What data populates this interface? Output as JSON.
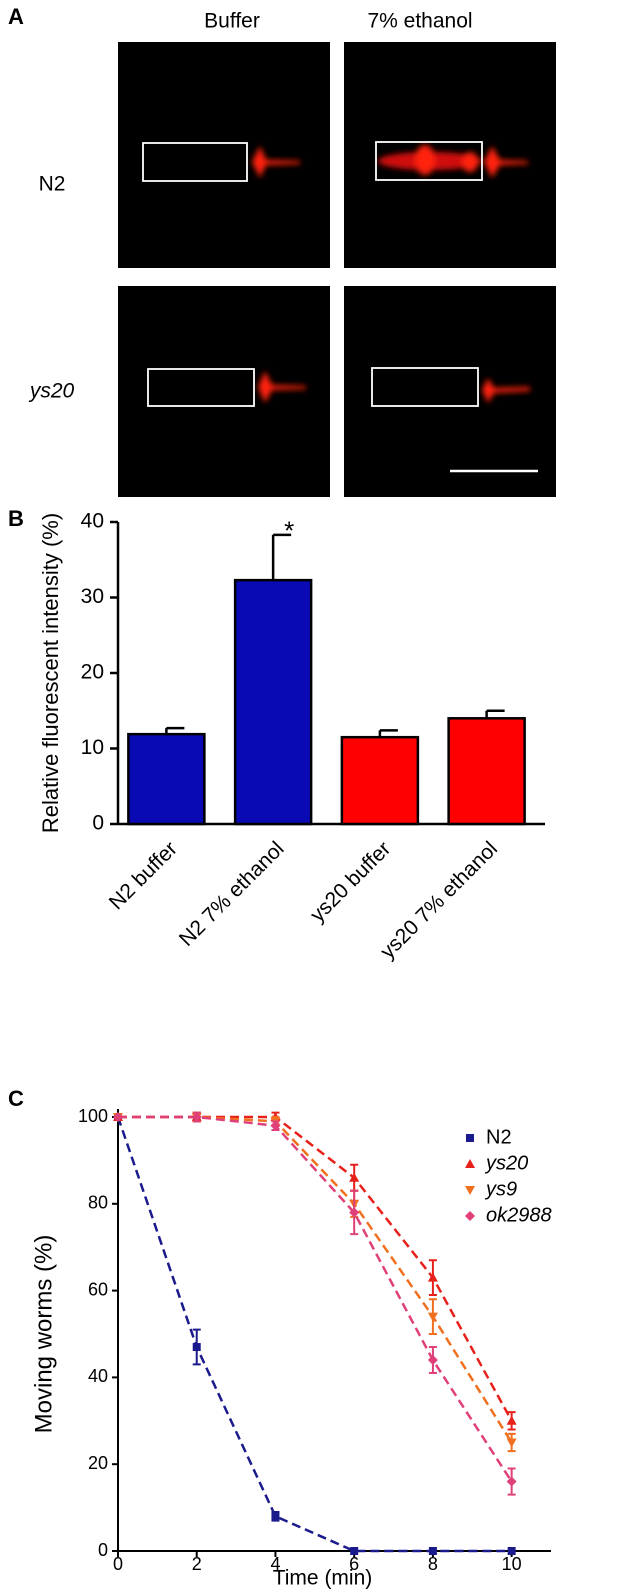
{
  "panel_a": {
    "label": "A",
    "columns": [
      "Buffer",
      "7% ethanol"
    ],
    "rows": [
      "N2",
      "ys20"
    ]
  },
  "chart_data": [
    {
      "type": "bar",
      "panel": "B",
      "ylabel": "Relative fluorescent intensity (%)",
      "categories": [
        "N2 buffer",
        "N2 7% ethanol",
        "ys20 buffer",
        "ys20 7% ethanol"
      ],
      "values": [
        11.9,
        32.3,
        11.5,
        14.0
      ],
      "errors": [
        0.8,
        6.0,
        0.9,
        1.0
      ],
      "colors": [
        "#0a0ab4",
        "#0a0ab4",
        "#ff0000",
        "#ff0000"
      ],
      "annotations": [
        {
          "category": 1,
          "text": "*"
        }
      ],
      "ylim": [
        0,
        40
      ],
      "yticks": [
        0,
        10,
        20,
        30,
        40
      ]
    },
    {
      "type": "line",
      "panel": "C",
      "xlabel": "Time (min)",
      "ylabel": "Moving worms (%)",
      "x": [
        0,
        2,
        4,
        6,
        8,
        10
      ],
      "series": [
        {
          "name": "N2",
          "color": "#1a1a8c",
          "marker": "square",
          "values": [
            100,
            47,
            8,
            0,
            0,
            0
          ],
          "errors": [
            0,
            4,
            1,
            0,
            0,
            0
          ]
        },
        {
          "name": "ys20",
          "color": "#e8201a",
          "marker": "triangle",
          "values": [
            100,
            100,
            100,
            86,
            63,
            30
          ],
          "errors": [
            0,
            1,
            1,
            3,
            4,
            2
          ]
        },
        {
          "name": "ys9",
          "color": "#f07020",
          "marker": "triangle-down",
          "values": [
            100,
            100,
            99,
            80,
            54,
            25
          ],
          "errors": [
            0,
            1,
            1,
            3,
            4,
            2
          ]
        },
        {
          "name": "ok2988",
          "color": "#e0407a",
          "marker": "diamond",
          "values": [
            100,
            100,
            98,
            78,
            44,
            16
          ],
          "errors": [
            0,
            1,
            1,
            5,
            3,
            3
          ]
        }
      ],
      "xlim": [
        0,
        11
      ],
      "xticks": [
        0,
        2,
        4,
        6,
        8,
        10
      ],
      "ylim": [
        0,
        100
      ],
      "yticks": [
        0,
        20,
        40,
        60,
        80,
        100
      ],
      "legend": "upper right"
    }
  ]
}
